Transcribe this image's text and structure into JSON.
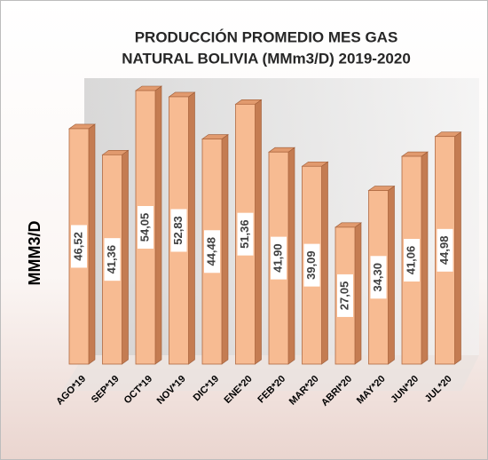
{
  "chart_data": {
    "type": "bar3d",
    "title": [
      "PRODUCCIÓN PROMEDIO MES GAS",
      "NATURAL BOLIVIA (MMm3/D) 2019-2020"
    ],
    "y_label": "MMM3/D",
    "categories": [
      "AGO*19",
      "SEP*19",
      "OCT*19",
      "NOV*19",
      "DIC*19",
      "ENE*20",
      "FEB*20",
      "MAR*20",
      "ABRI*20",
      "MAY*20",
      "JUN*20",
      "JUL*20"
    ],
    "values": [
      46.52,
      41.36,
      54.05,
      52.83,
      44.48,
      51.36,
      41.9,
      39.09,
      27.05,
      34.3,
      41.06,
      44.98
    ],
    "value_labels": [
      "46,52",
      "41,36",
      "54,05",
      "52,83",
      "44,48",
      "51,36",
      "41,90",
      "39,09",
      "27,05",
      "34,30",
      "41,06",
      "44,98"
    ],
    "color": "#f7bb92"
  }
}
